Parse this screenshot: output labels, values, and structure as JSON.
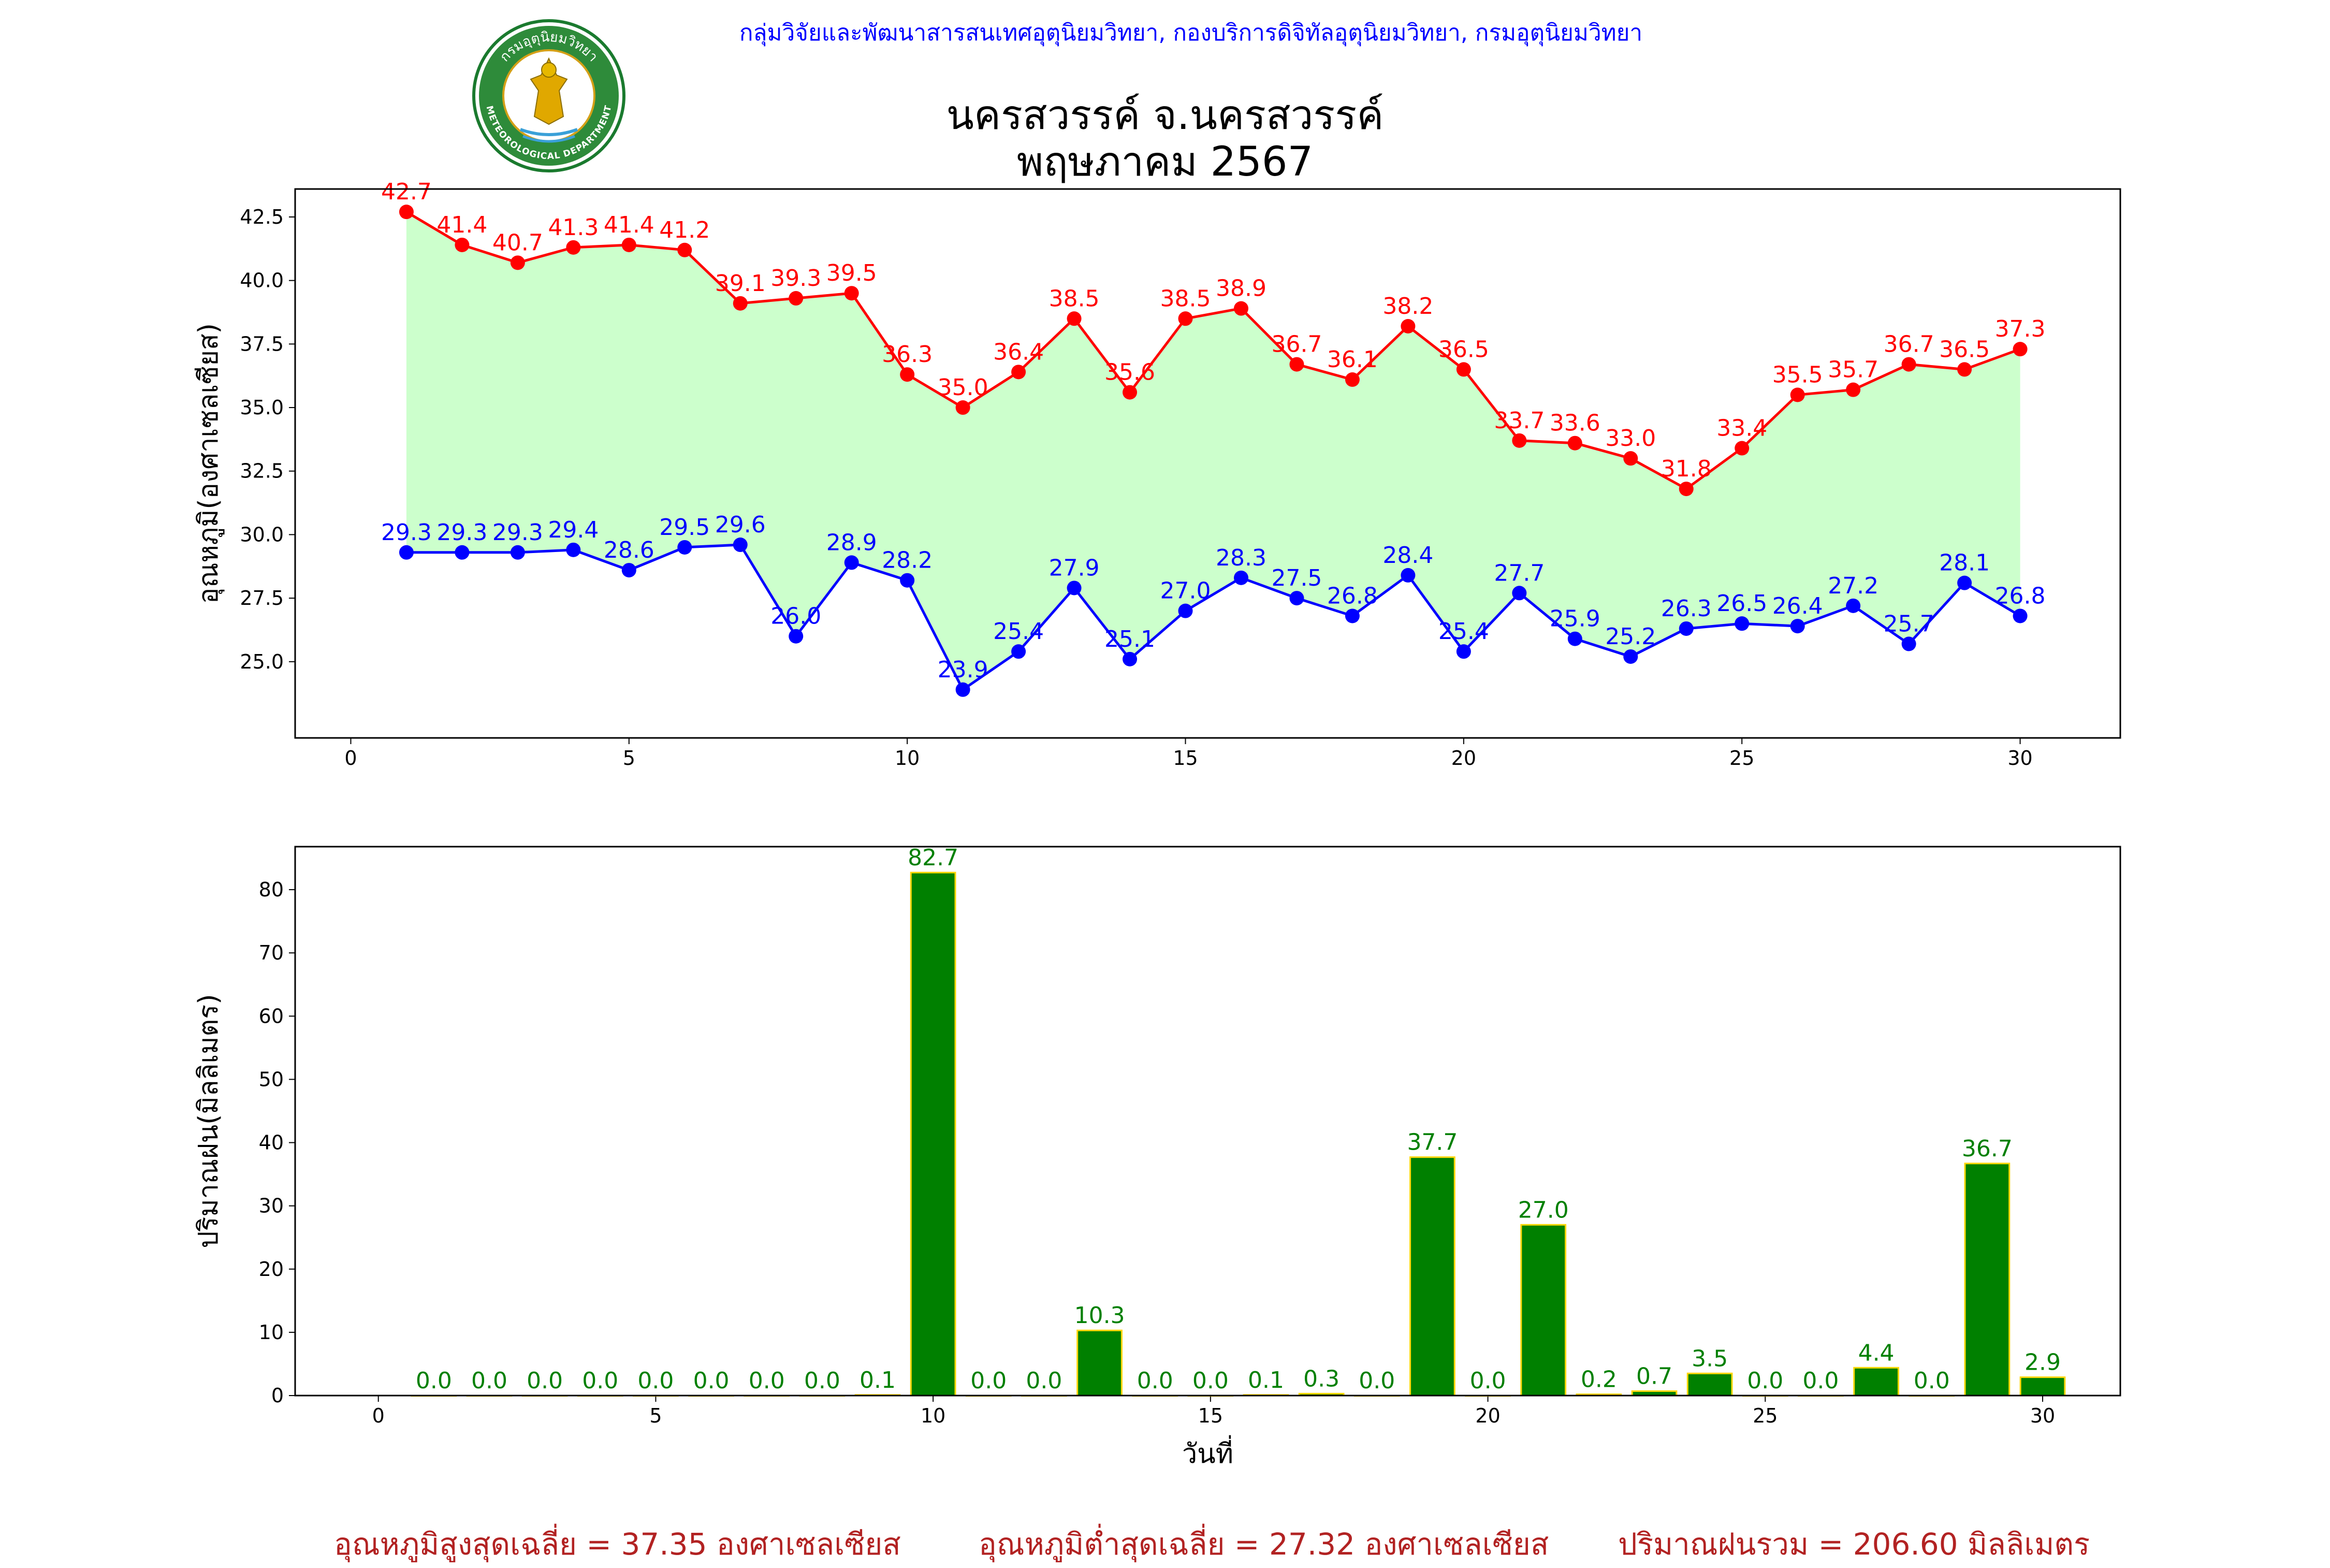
{
  "header": {
    "agency": "กลุ่มวิจัยและพัฒนาสารสนเทศอุตุนิยมวิทยา, กองบริการดิจิทัลอุตุนิยมวิทยา, กรมอุตุนิยมวิทยา",
    "station": "นครสวรรค์  จ.นครสวรรค์",
    "month": "พฤษภาคม 2567",
    "logo": {
      "top_text": "กรมอุตุนิยมวิทยา",
      "bottom_text": "METEOROLOGICAL DEPARTMENT"
    }
  },
  "footer": {
    "avg_max": "อุณหภูมิสูงสุดเฉลี่ย = 37.35 องศาเซลเซียส",
    "avg_min": "อุณหภูมิต่ำสุดเฉลี่ย = 27.32 องศาเซลเซียส",
    "total_rain": "ปริมาณฝนรวม = 206.60 มิลลิเมตร"
  },
  "colors": {
    "max": "#ff0000",
    "min": "#0000ff",
    "fill": "#ccffcc",
    "bar": "#008000",
    "bar_edge": "#ffd700",
    "bar_label": "#008000",
    "footer": "#b22222"
  },
  "chart_data": [
    {
      "type": "line",
      "ylabel": "อุณหภูมิ(องศาเซลเซียส)",
      "xlabel": "",
      "xlim": [
        -1,
        31.8
      ],
      "ylim": [
        22.0,
        43.6
      ],
      "xticks": [
        0,
        5,
        10,
        15,
        20,
        25,
        30
      ],
      "yticks": [
        25.0,
        27.5,
        30.0,
        32.5,
        35.0,
        37.5,
        40.0,
        42.5
      ],
      "x": [
        1,
        2,
        3,
        4,
        5,
        6,
        7,
        8,
        9,
        10,
        11,
        12,
        13,
        14,
        15,
        16,
        17,
        18,
        19,
        20,
        21,
        22,
        23,
        24,
        25,
        26,
        27,
        28,
        29,
        30
      ],
      "series": [
        {
          "values": [
            42.7,
            41.4,
            40.7,
            41.3,
            41.4,
            41.2,
            39.1,
            39.3,
            39.5,
            36.3,
            35.0,
            36.4,
            38.5,
            35.6,
            38.5,
            38.9,
            36.7,
            36.1,
            38.2,
            36.5,
            33.7,
            33.6,
            33.0,
            31.8,
            33.4,
            35.5,
            35.7,
            36.7,
            36.5,
            37.3
          ]
        },
        {
          "values": [
            29.3,
            29.3,
            29.3,
            29.4,
            28.6,
            29.5,
            29.6,
            26.0,
            28.9,
            28.2,
            23.9,
            25.4,
            27.9,
            25.1,
            27.0,
            28.3,
            27.5,
            26.8,
            28.4,
            25.4,
            27.7,
            25.9,
            25.2,
            26.3,
            26.5,
            26.4,
            27.2,
            25.7,
            28.1,
            26.8
          ]
        }
      ],
      "fill_between": true,
      "grid": false
    },
    {
      "type": "bar",
      "ylabel": "ปริมาณฝน(มิลลิเมตร)",
      "xlabel": "วันที่",
      "xlim": [
        -1.5,
        31.4
      ],
      "ylim": [
        0,
        86.8
      ],
      "xticks": [
        0,
        5,
        10,
        15,
        20,
        25,
        30
      ],
      "yticks": [
        0,
        10,
        20,
        30,
        40,
        50,
        60,
        70,
        80
      ],
      "x": [
        1,
        2,
        3,
        4,
        5,
        6,
        7,
        8,
        9,
        10,
        11,
        12,
        13,
        14,
        15,
        16,
        17,
        18,
        19,
        20,
        21,
        22,
        23,
        24,
        25,
        26,
        27,
        28,
        29,
        30
      ],
      "values": [
        0.0,
        0.0,
        0.0,
        0.0,
        0.0,
        0.0,
        0.0,
        0.0,
        0.1,
        82.7,
        0.0,
        0.0,
        10.3,
        0.0,
        0.0,
        0.1,
        0.3,
        0.0,
        37.7,
        0.0,
        27.0,
        0.2,
        0.7,
        3.5,
        0.0,
        0.0,
        4.4,
        0.0,
        36.7,
        2.9
      ],
      "grid": false
    }
  ]
}
